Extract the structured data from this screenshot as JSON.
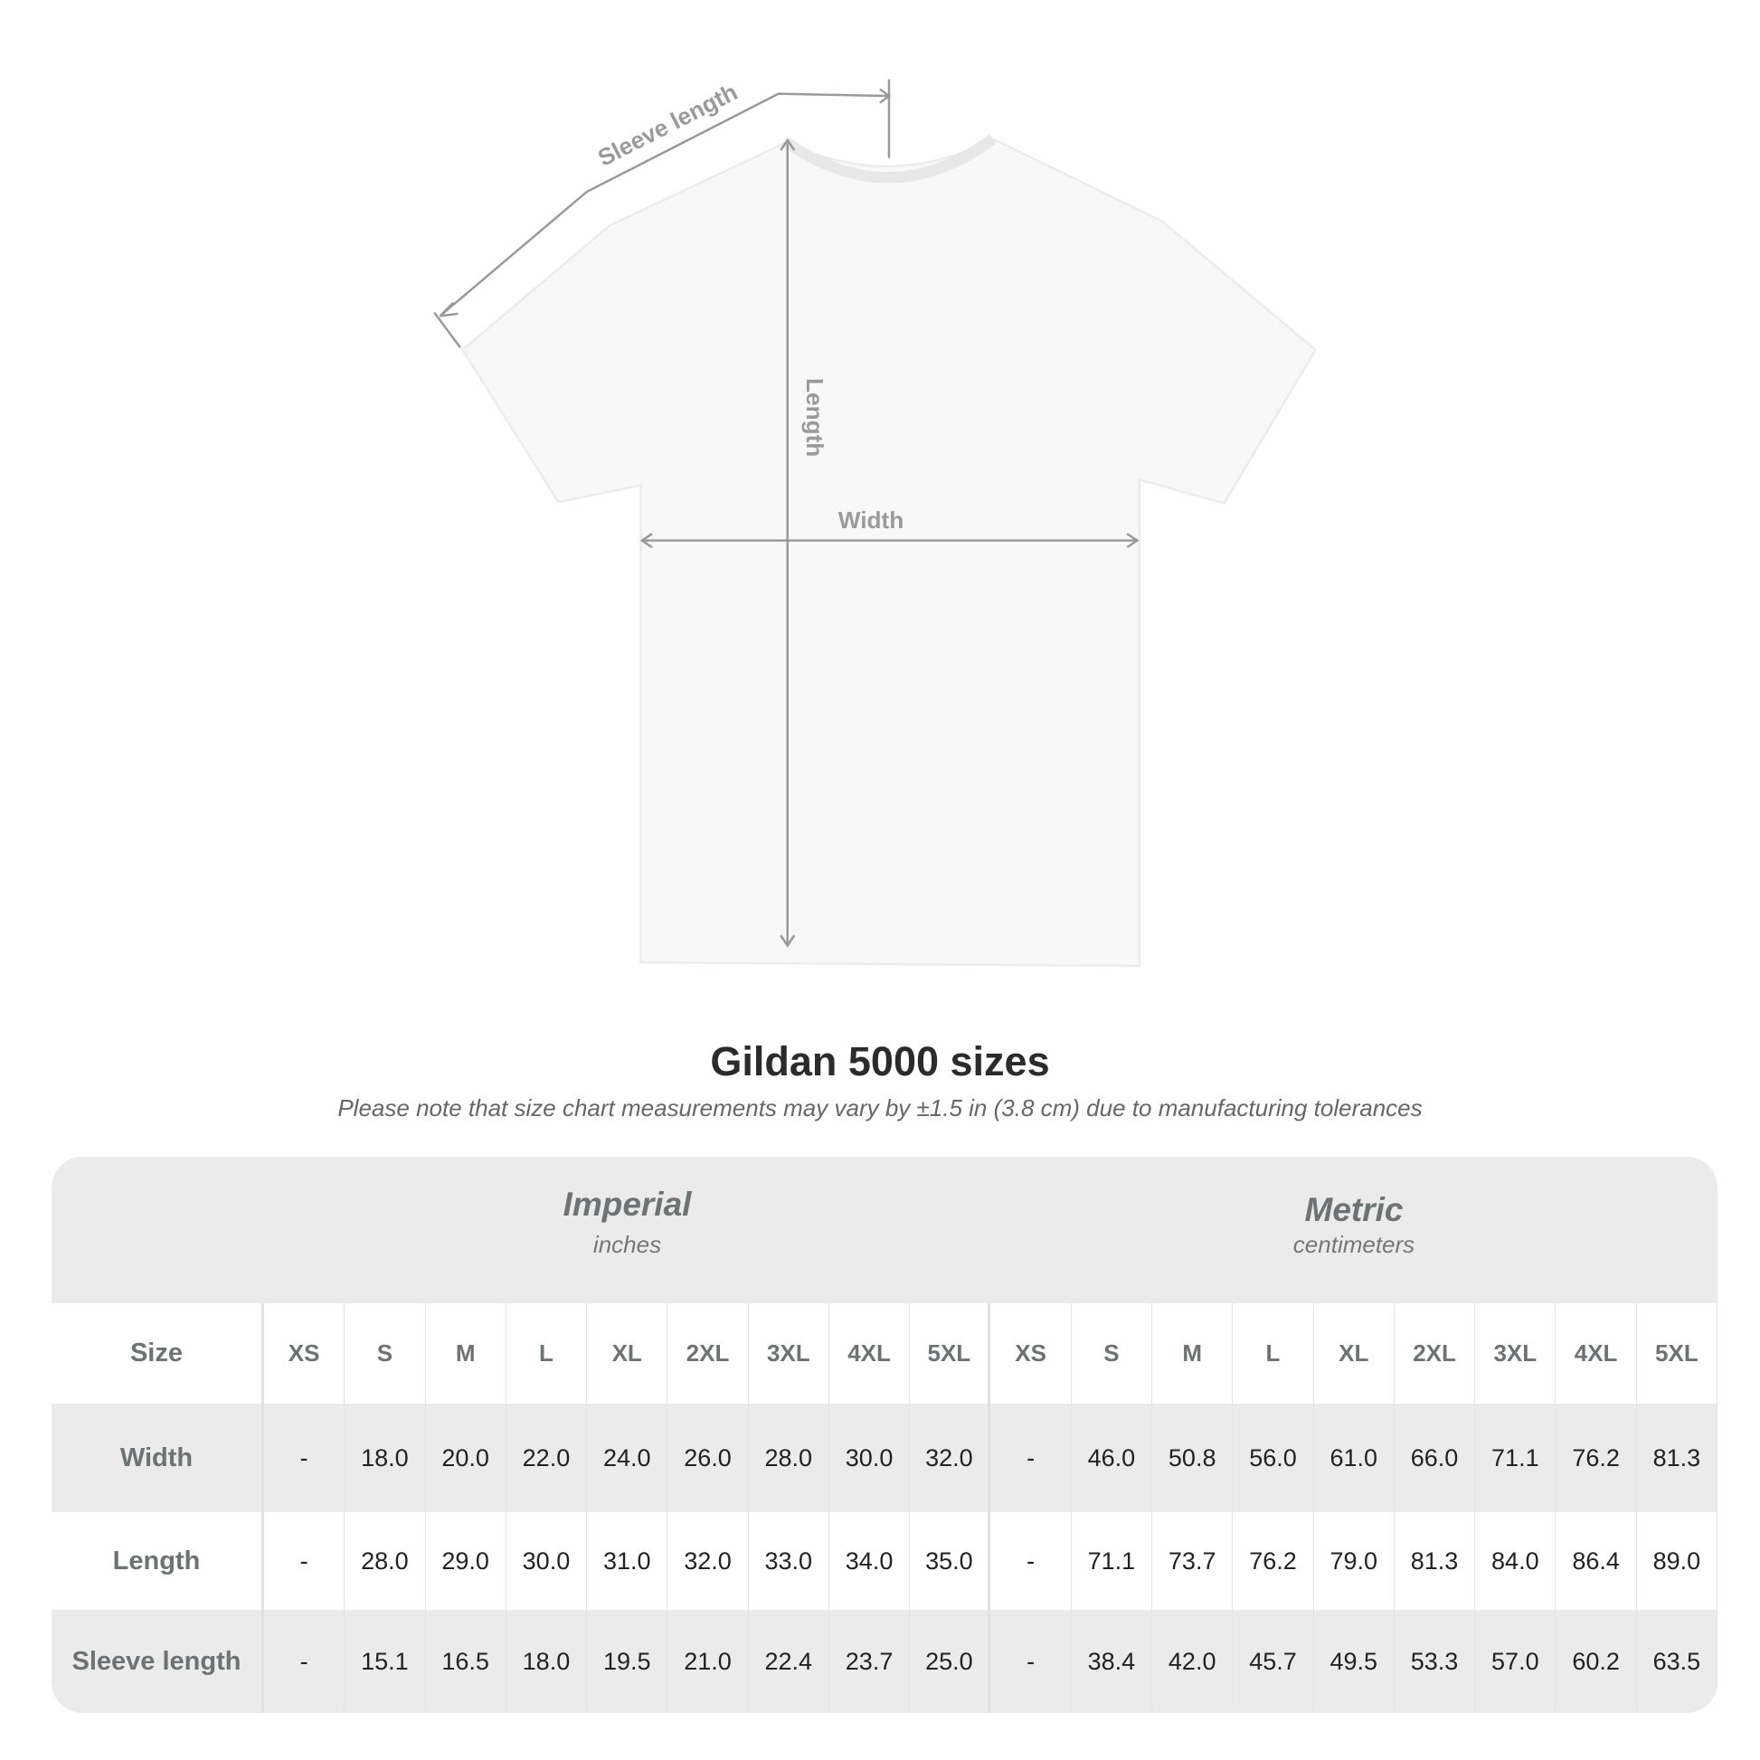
{
  "diagram": {
    "sleeve_label": "Sleeve length",
    "length_label": "Length",
    "width_label": "Width"
  },
  "title": "Gildan 5000 sizes",
  "note": "Please note that size chart measurements may vary by ±1.5 in (3.8 cm) due to manufacturing tolerances",
  "groups": [
    {
      "name": "Imperial",
      "unit": "inches"
    },
    {
      "name": "Metric",
      "unit": "centimeters"
    }
  ],
  "size_label": "Size",
  "sizes": [
    "XS",
    "S",
    "M",
    "L",
    "XL",
    "2XL",
    "3XL",
    "4XL",
    "5XL",
    "XS",
    "S",
    "M",
    "L",
    "XL",
    "2XL",
    "3XL",
    "4XL",
    "5XL"
  ],
  "rows": [
    {
      "label": "Width",
      "values": [
        "-",
        "18.0",
        "20.0",
        "22.0",
        "24.0",
        "26.0",
        "28.0",
        "30.0",
        "32.0",
        "-",
        "46.0",
        "50.8",
        "56.0",
        "61.0",
        "66.0",
        "71.1",
        "76.2",
        "81.3"
      ]
    },
    {
      "label": "Length",
      "values": [
        "-",
        "28.0",
        "29.0",
        "30.0",
        "31.0",
        "32.0",
        "33.0",
        "34.0",
        "35.0",
        "-",
        "71.1",
        "73.7",
        "76.2",
        "79.0",
        "81.3",
        "84.0",
        "86.4",
        "89.0"
      ]
    },
    {
      "label": "Sleeve length",
      "values": [
        "-",
        "15.1",
        "16.5",
        "18.0",
        "19.5",
        "21.0",
        "22.4",
        "23.7",
        "25.0",
        "-",
        "38.4",
        "42.0",
        "45.7",
        "49.5",
        "53.3",
        "57.0",
        "60.2",
        "63.5"
      ]
    }
  ],
  "colors": {
    "header_bg": "#ebebeb",
    "label_text": "#6d7373",
    "measure_line": "#9a9a9a"
  }
}
